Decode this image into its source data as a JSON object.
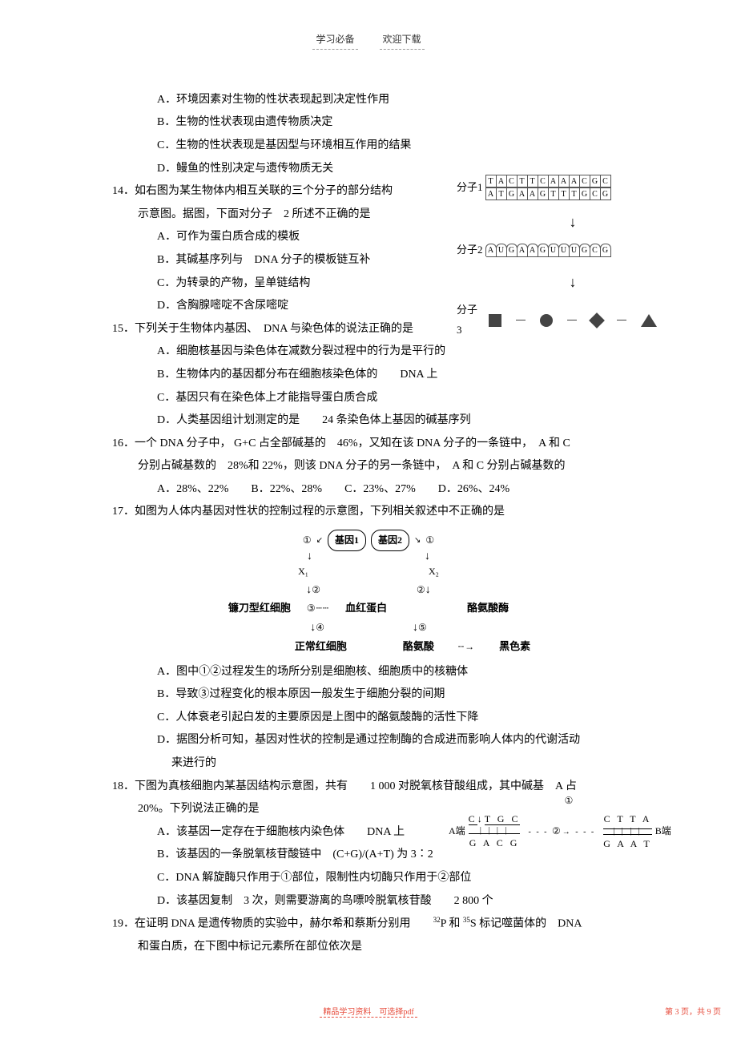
{
  "header": {
    "left": "学习必备",
    "right": "欢迎下载"
  },
  "q13": {
    "opts": {
      "a": "A．环境因素对生物的性状表现起到决定性作用",
      "b": "B．生物的性状表现由遗传物质决定",
      "c": "C．生物的性状表现是基因型与环境相互作用的结果",
      "d": "D．鳗鱼的性别决定与遗传物质无关"
    }
  },
  "q14": {
    "stem1": "14．如右图为某生物体内相互关联的三个分子的部分结构",
    "stem2": "示意图。据图，下面对分子　2 所述不正确的是",
    "a": "A．可作为蛋白质合成的模板",
    "b": "B．其碱基序列与　DNA 分子的模板链互补",
    "c": "C．为转录的产物，呈单链结构",
    "d": "D．含胸腺嘧啶不含尿嘧啶",
    "diagram": {
      "m1_label": "分子1",
      "m1_top": [
        "T",
        "A",
        "C",
        "T",
        "T",
        "C",
        "A",
        "A",
        "A",
        "C",
        "G",
        "C"
      ],
      "m1_bot": [
        "A",
        "T",
        "G",
        "A",
        "A",
        "G",
        "T",
        "T",
        "T",
        "G",
        "C",
        "G"
      ],
      "m2_label": "分子2",
      "m2": [
        "A",
        "U",
        "G",
        "A",
        "A",
        "G",
        "U",
        "U",
        "U",
        "G",
        "C",
        "G"
      ],
      "m3_label": "分子3"
    }
  },
  "q15": {
    "stem": "15．下列关于生物体内基因、　DNA 与染色体的说法正确的是",
    "a": "A．细胞核基因与染色体在减数分裂过程中的行为是平行的",
    "b": "B．生物体内的基因都分布在细胞核染色体的　　DNA 上",
    "c": "C．基因只有在染色体上才能指导蛋白质合成",
    "d": "D．人类基因组计划测定的是　　24 条染色体上基因的碱基序列"
  },
  "q16": {
    "l1": "16．一个 DNA 分子中， G+C 占全部碱基的　46%，又知在该 DNA 分子的一条链中，　A 和 C",
    "l2": "分别占碱基数的　28%和 22%，则该 DNA 分子的另一条链中，　A 和 C 分别占碱基数的",
    "opts": "A．28%、22%　　B．22%、28%　　C．23%、27%　　D．26%、24%"
  },
  "q17": {
    "stem": "17．如图为人体内基因对性状的控制过程的示意图，下列相关叙述中不正确的是",
    "a": "A．图中①②过程发生的场所分别是细胞核、细胞质中的核糖体",
    "b": "B．导致③过程变化的根本原因一般发生于细胞分裂的间期",
    "c": "C．人体衰老引起白发的主要原因是上图中的酪氨酸酶的活性下降",
    "d1": "D．据图分析可知，基因对性状的控制是通过控制酶的合成进而影响人体内的代谢活动",
    "d2": "来进行的",
    "diagram": {
      "gene1": "基因1",
      "gene2": "基因2",
      "x1": "X₁",
      "x2": "X₂",
      "sickle": "镰刀型红细胞",
      "hb": "血红蛋白",
      "tyrase": "酪氨酸酶",
      "normal": "正常红细胞",
      "tyr": "酪氨酸",
      "melanin": "黑色素",
      "c1": "①",
      "c2": "②",
      "c3": "③",
      "c4": "④",
      "c5": "⑤"
    }
  },
  "q18": {
    "l1": "18．下图为真核细胞内某基因结构示意图，共有　　1 000 对脱氧核苷酸组成，其中碱基　A 占",
    "l2": "20%。下列说法正确的是",
    "a": "A．该基因一定存在于细胞核内染色体　　DNA 上",
    "b": "B．该基因的一条脱氧核苷酸链中　(C+G)/(A+T) 为 3∶2",
    "c": "C．DNA 解旋酶只作用于①部位，限制性内切酶只作用于②部位",
    "d": "D．该基因复制　3 次，则需要游离的鸟嘌呤脱氧核苷酸　　2 800 个",
    "diagram": {
      "aend": "A端",
      "bend": "B端",
      "c1": "①",
      "c2": "②",
      "seg1_top": "C T G C",
      "seg1_bot": "G A C G",
      "seg2_top": "C T T A",
      "seg2_bot": "G A A T"
    }
  },
  "q19": {
    "l1_a": "19．在证明 DNA 是遗传物质的实验中，赫尔希和蔡斯分别用　　",
    "l1_b": "P 和 ",
    "l1_c": "S 标记噬菌体的　DNA",
    "sup1": "32",
    "sup2": "35",
    "l2": "和蛋白质，在下图中标记元素所在部位依次是"
  },
  "footer": {
    "text1": "精品学习资料",
    "text2": "可选择pdf",
    "page": "第 3 页，共 9 页"
  }
}
